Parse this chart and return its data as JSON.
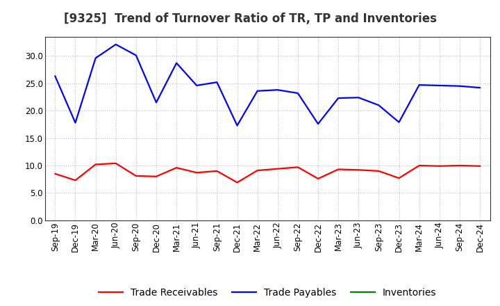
{
  "title": "[9325]  Trend of Turnover Ratio of TR, TP and Inventories",
  "x_labels": [
    "Sep-19",
    "Dec-19",
    "Mar-20",
    "Jun-20",
    "Sep-20",
    "Dec-20",
    "Mar-21",
    "Jun-21",
    "Sep-21",
    "Dec-21",
    "Mar-22",
    "Jun-22",
    "Sep-22",
    "Dec-22",
    "Mar-23",
    "Jun-23",
    "Sep-23",
    "Dec-23",
    "Mar-24",
    "Jun-24",
    "Sep-24",
    "Dec-24"
  ],
  "trade_receivables": [
    8.5,
    7.3,
    10.2,
    10.4,
    8.1,
    8.0,
    9.6,
    8.7,
    9.0,
    6.9,
    9.1,
    9.4,
    9.7,
    7.6,
    9.3,
    9.2,
    9.0,
    7.7,
    10.0,
    9.9,
    10.0,
    9.9
  ],
  "trade_payables": [
    26.3,
    17.8,
    29.6,
    32.1,
    30.1,
    21.5,
    28.7,
    24.6,
    25.2,
    17.3,
    23.6,
    23.8,
    23.2,
    17.6,
    22.3,
    22.4,
    21.0,
    17.9,
    24.7,
    24.6,
    24.5,
    24.2
  ],
  "inventories": [],
  "tr_color": "#ff0000",
  "tp_color": "#0000ff",
  "inv_color": "#008000",
  "background_color": "#ffffff",
  "grid_color": "#aaaaaa",
  "ylim": [
    0.0,
    33.5
  ],
  "yticks": [
    0.0,
    5.0,
    10.0,
    15.0,
    20.0,
    25.0,
    30.0
  ],
  "title_fontsize": 12,
  "legend_fontsize": 10,
  "tick_fontsize": 8.5
}
